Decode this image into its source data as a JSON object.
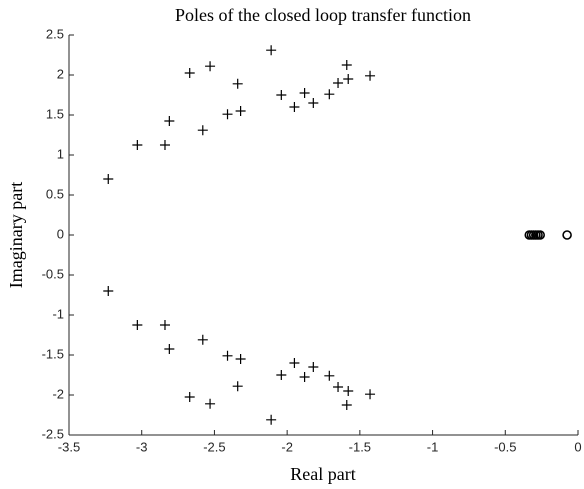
{
  "chart_data": {
    "type": "scatter",
    "title": "Poles of the closed loop transfer function",
    "xlabel": "Real part",
    "ylabel": "Imaginary part",
    "xlim": [
      -3.5,
      0
    ],
    "ylim": [
      -2.5,
      2.5
    ],
    "xticks": [
      -3.5,
      -3,
      -2.5,
      -2,
      -1.5,
      -1,
      -0.5,
      0
    ],
    "yticks": [
      -2.5,
      -2,
      -1.5,
      -1,
      -0.5,
      0,
      0.5,
      1,
      1.5,
      2,
      2.5
    ],
    "series": [
      {
        "marker": "plus",
        "color": "#000000",
        "x": [
          -3.23,
          -3.03,
          -2.84,
          -2.81,
          -2.58,
          -2.67,
          -2.53,
          -2.41,
          -2.32,
          -2.34,
          -2.11,
          -2.04,
          -1.95,
          -1.88,
          -1.82,
          -1.71,
          -1.65,
          -1.58,
          -1.59,
          -1.43,
          -3.23,
          -3.03,
          -2.84,
          -2.81,
          -2.58,
          -2.67,
          -2.53,
          -2.41,
          -2.32,
          -2.34,
          -2.11,
          -2.04,
          -1.95,
          -1.88,
          -1.82,
          -1.71,
          -1.65,
          -1.58,
          -1.59,
          -1.43
        ],
        "values": [
          0.7,
          1.125,
          1.125,
          1.425,
          1.31,
          2.025,
          2.11,
          1.51,
          1.55,
          1.89,
          2.31,
          1.75,
          1.6,
          1.775,
          1.65,
          1.76,
          1.9,
          1.95,
          2.125,
          1.99,
          -0.7,
          -1.125,
          -1.125,
          -1.425,
          -1.31,
          -2.025,
          -2.11,
          -1.51,
          -1.55,
          -1.89,
          -2.31,
          -1.75,
          -1.6,
          -1.775,
          -1.65,
          -1.76,
          -1.9,
          -1.95,
          -2.125,
          -1.99
        ]
      },
      {
        "marker": "circle",
        "color": "#000000",
        "x": [
          -0.335,
          -0.32,
          -0.305,
          -0.29,
          -0.275,
          -0.26,
          -0.075
        ],
        "values": [
          0,
          0,
          0,
          0,
          0,
          0,
          0
        ]
      }
    ]
  }
}
